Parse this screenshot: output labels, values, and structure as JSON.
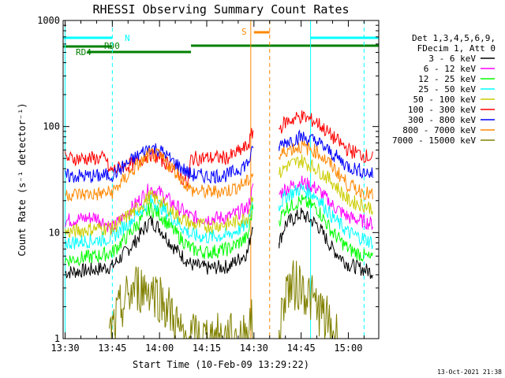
{
  "chart_data": {
    "type": "line",
    "title": "RHESSI Observing Summary Count Rates",
    "xlabel": "Start Time (10-Feb-09 13:29:22)",
    "ylabel": "Count Rate (s⁻¹ detector⁻¹)",
    "x_ticks": [
      "13:30",
      "13:45",
      "14:00",
      "14:15",
      "14:30",
      "14:45",
      "15:00"
    ],
    "y_ticks": [
      "1",
      "10",
      "100",
      "1000"
    ],
    "xlim": [
      "13:29:22",
      "15:09:40"
    ],
    "ylim": [
      1,
      1000
    ],
    "y_scale": "log",
    "legend_header": [
      "Det 1,3,4,5,6,9,",
      "FDecim 1, Att 0"
    ],
    "legend_placement": "right",
    "footer_date": "13-Oct-2021 21:38",
    "series": [
      {
        "name": "3 - 6 keV",
        "color": "#000000",
        "points": [
          [
            "13:30",
            4.2
          ],
          [
            "13:40",
            4.5
          ],
          [
            "13:45",
            4.8
          ],
          [
            "13:52",
            8
          ],
          [
            "13:57",
            13
          ],
          [
            "14:00",
            11
          ],
          [
            "14:05",
            7
          ],
          [
            "14:10",
            5
          ],
          [
            "14:15",
            4.6
          ],
          [
            "14:22",
            4.8
          ],
          [
            "14:28",
            6.5
          ],
          [
            "14:30",
            14
          ],
          [
            "14:38",
            8
          ],
          [
            "14:40",
            12
          ],
          [
            "14:45",
            15
          ],
          [
            "14:50",
            12
          ],
          [
            "14:55",
            7
          ],
          [
            "15:00",
            5
          ],
          [
            "15:08",
            4.2
          ]
        ]
      },
      {
        "name": "6 - 12 keV",
        "color": "#ff00ff",
        "points": [
          [
            "13:30",
            13
          ],
          [
            "13:40",
            14
          ],
          [
            "13:45",
            11
          ],
          [
            "13:52",
            18
          ],
          [
            "13:57",
            26
          ],
          [
            "14:00",
            24
          ],
          [
            "14:05",
            18
          ],
          [
            "14:10",
            14
          ],
          [
            "14:15",
            13.5
          ],
          [
            "14:22",
            14
          ],
          [
            "14:28",
            17
          ],
          [
            "14:30",
            28
          ],
          [
            "14:38",
            23
          ],
          [
            "14:40",
            26
          ],
          [
            "14:45",
            30
          ],
          [
            "14:50",
            26
          ],
          [
            "14:55",
            18
          ],
          [
            "15:00",
            14
          ],
          [
            "15:08",
            12
          ]
        ]
      },
      {
        "name": "12 - 25 keV",
        "color": "#00ff00",
        "points": [
          [
            "13:30",
            5.5
          ],
          [
            "13:40",
            6
          ],
          [
            "13:45",
            6.5
          ],
          [
            "13:52",
            11
          ],
          [
            "13:57",
            17
          ],
          [
            "14:00",
            15
          ],
          [
            "14:05",
            10
          ],
          [
            "14:10",
            7
          ],
          [
            "14:15",
            6.5
          ],
          [
            "14:22",
            7
          ],
          [
            "14:28",
            9
          ],
          [
            "14:30",
            20
          ],
          [
            "14:38",
            13
          ],
          [
            "14:40",
            17
          ],
          [
            "14:45",
            20
          ],
          [
            "14:50",
            17
          ],
          [
            "14:55",
            10
          ],
          [
            "15:00",
            7
          ],
          [
            "15:08",
            5.5
          ]
        ]
      },
      {
        "name": "25 - 50 keV",
        "color": "#00ffff",
        "points": [
          [
            "13:30",
            8
          ],
          [
            "13:40",
            8.5
          ],
          [
            "13:45",
            9
          ],
          [
            "13:52",
            14
          ],
          [
            "13:57",
            20
          ],
          [
            "14:00",
            18
          ],
          [
            "14:05",
            13
          ],
          [
            "14:10",
            9.5
          ],
          [
            "14:15",
            9
          ],
          [
            "14:22",
            9.5
          ],
          [
            "14:28",
            12
          ],
          [
            "14:30",
            24
          ],
          [
            "14:38",
            18
          ],
          [
            "14:40",
            22
          ],
          [
            "14:45",
            26
          ],
          [
            "14:50",
            22
          ],
          [
            "14:55",
            14
          ],
          [
            "15:00",
            10
          ],
          [
            "15:08",
            8
          ]
        ]
      },
      {
        "name": "50 - 100 keV",
        "color": "#cccc00",
        "points": [
          [
            "13:30",
            10
          ],
          [
            "13:40",
            11
          ],
          [
            "13:45",
            11
          ],
          [
            "13:52",
            16
          ],
          [
            "13:57",
            22
          ],
          [
            "14:00",
            20
          ],
          [
            "14:05",
            15
          ],
          [
            "14:10",
            12
          ],
          [
            "14:15",
            11.5
          ],
          [
            "14:22",
            12
          ],
          [
            "14:28",
            14
          ],
          [
            "14:30",
            26
          ],
          [
            "14:38",
            35
          ],
          [
            "14:40",
            42
          ],
          [
            "14:45",
            48
          ],
          [
            "14:50",
            40
          ],
          [
            "14:55",
            30
          ],
          [
            "15:00",
            20
          ],
          [
            "15:08",
            17
          ]
        ]
      },
      {
        "name": "100 - 300 keV",
        "color": "#ff0000",
        "points": [
          [
            "13:30",
            50
          ],
          [
            "13:43",
            50
          ],
          [
            "13:44",
            38
          ],
          [
            "13:52",
            45
          ],
          [
            "13:57",
            55
          ],
          [
            "14:00",
            50
          ],
          [
            "14:05",
            40
          ],
          [
            "14:09",
            28
          ],
          [
            "14:10",
            50
          ],
          [
            "14:22",
            51
          ],
          [
            "14:28",
            65
          ],
          [
            "14:30",
            95
          ],
          [
            "14:38",
            95
          ],
          [
            "14:40",
            110
          ],
          [
            "14:45",
            125
          ],
          [
            "14:50",
            110
          ],
          [
            "14:55",
            80
          ],
          [
            "15:00",
            60
          ],
          [
            "15:08",
            50
          ]
        ]
      },
      {
        "name": "300 - 800 keV",
        "color": "#0000ff",
        "points": [
          [
            "13:30",
            34
          ],
          [
            "13:40",
            34
          ],
          [
            "13:45",
            35
          ],
          [
            "13:52",
            50
          ],
          [
            "13:57",
            64
          ],
          [
            "14:00",
            60
          ],
          [
            "14:05",
            45
          ],
          [
            "14:10",
            35
          ],
          [
            "14:15",
            34
          ],
          [
            "14:22",
            35
          ],
          [
            "14:28",
            45
          ],
          [
            "14:30",
            62
          ],
          [
            "14:38",
            65
          ],
          [
            "14:40",
            72
          ],
          [
            "14:45",
            80
          ],
          [
            "14:50",
            72
          ],
          [
            "14:55",
            55
          ],
          [
            "15:00",
            42
          ],
          [
            "15:08",
            35
          ]
        ]
      },
      {
        "name": "800 - 7000 keV",
        "color": "#ff8800",
        "points": [
          [
            "13:30",
            23
          ],
          [
            "13:40",
            23
          ],
          [
            "13:45",
            24
          ],
          [
            "13:52",
            40
          ],
          [
            "13:57",
            55
          ],
          [
            "14:00",
            52
          ],
          [
            "14:05",
            38
          ],
          [
            "14:10",
            25
          ],
          [
            "14:15",
            24
          ],
          [
            "14:22",
            25
          ],
          [
            "14:28",
            30
          ],
          [
            "14:30",
            38
          ],
          [
            "14:38",
            50
          ],
          [
            "14:40",
            60
          ],
          [
            "14:45",
            65
          ],
          [
            "14:50",
            58
          ],
          [
            "14:55",
            42
          ],
          [
            "15:00",
            28
          ],
          [
            "15:08",
            22
          ]
        ]
      },
      {
        "name": "7000 - 15000 keV",
        "color": "#808000",
        "points": [
          [
            "13:44",
            1
          ],
          [
            "13:48",
            2
          ],
          [
            "13:52",
            3
          ],
          [
            "13:57",
            3
          ],
          [
            "14:00",
            2.5
          ],
          [
            "14:05",
            1.5
          ],
          [
            "14:07",
            1
          ],
          [
            "14:27",
            1
          ],
          [
            "14:29",
            1.5
          ],
          [
            "14:30",
            1
          ],
          [
            "14:38",
            1
          ],
          [
            "14:40",
            3
          ],
          [
            "14:45",
            3.2
          ],
          [
            "14:50",
            2
          ],
          [
            "14:55",
            1.2
          ],
          [
            "14:57",
            1
          ]
        ]
      }
    ],
    "vertical_lines": [
      {
        "time": "13:30",
        "color": "#00ffff",
        "style": "solid"
      },
      {
        "time": "13:45",
        "color": "#00ffff",
        "style": "dashed"
      },
      {
        "time": "14:29",
        "color": "#ff8800",
        "style": "solid"
      },
      {
        "time": "14:35",
        "color": "#ff8800",
        "style": "dashed"
      },
      {
        "time": "14:48",
        "color": "#00ffff",
        "style": "solid"
      },
      {
        "time": "15:05",
        "color": "#00ffff",
        "style": "dashed"
      }
    ],
    "flag_bars": [
      {
        "label": "N",
        "color": "#00ffff",
        "segments": [
          [
            "13:29:22",
            "13:45"
          ],
          [
            "14:48",
            "15:09:40"
          ]
        ]
      },
      {
        "label": "RD0",
        "color": "#008000",
        "segments": [
          [
            "13:29:22",
            "13:45"
          ]
        ]
      },
      {
        "label": "RD4",
        "color": "#008000",
        "segments": [
          [
            "13:37",
            "14:10"
          ],
          [
            "14:10",
            "15:09:40"
          ]
        ]
      },
      {
        "label": "S",
        "color": "#ff8800",
        "segments": [
          [
            "14:30",
            "14:35"
          ]
        ]
      }
    ]
  }
}
